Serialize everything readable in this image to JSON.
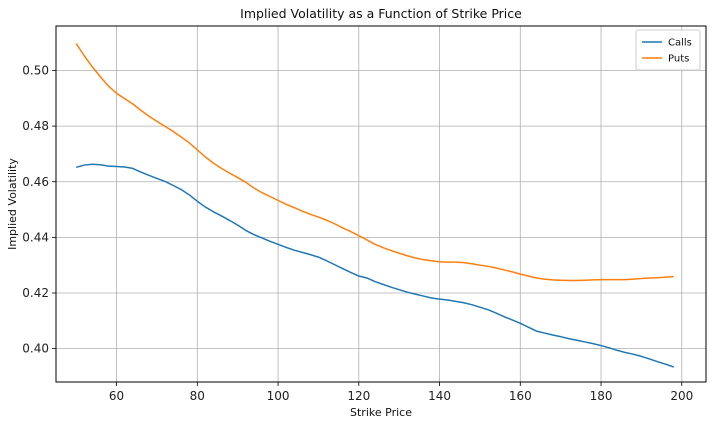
{
  "chart_data": {
    "type": "line",
    "title": "Implied Volatility as a Function of Strike Price",
    "xlabel": "Strike Price",
    "ylabel": "Implied Volatility",
    "xlim": [
      45,
      206
    ],
    "ylim": [
      0.388,
      0.516
    ],
    "xticks": [
      60,
      80,
      100,
      120,
      140,
      160,
      180,
      200
    ],
    "yticks": [
      0.4,
      0.42,
      0.44,
      0.46,
      0.48,
      0.5
    ],
    "grid": true,
    "legend_position": "top-right",
    "x": [
      50,
      52,
      54,
      56,
      58,
      60,
      62,
      64,
      66,
      68,
      70,
      72,
      74,
      76,
      78,
      80,
      82,
      84,
      86,
      88,
      90,
      92,
      94,
      96,
      98,
      100,
      102,
      104,
      106,
      108,
      110,
      112,
      114,
      116,
      118,
      120,
      122,
      124,
      126,
      128,
      130,
      132,
      134,
      136,
      138,
      140,
      142,
      144,
      146,
      148,
      150,
      152,
      154,
      156,
      158,
      160,
      162,
      164,
      166,
      168,
      170,
      172,
      174,
      176,
      178,
      180,
      182,
      184,
      186,
      188,
      190,
      192,
      194,
      196,
      198
    ],
    "series": [
      {
        "name": "Calls",
        "color": "#1f77b4",
        "values": [
          0.4652,
          0.466,
          0.4663,
          0.4661,
          0.4656,
          0.4655,
          0.4653,
          0.4648,
          0.4635,
          0.4623,
          0.4612,
          0.4601,
          0.4587,
          0.4572,
          0.4553,
          0.453,
          0.4509,
          0.4492,
          0.4477,
          0.4461,
          0.4444,
          0.4425,
          0.441,
          0.4398,
          0.4386,
          0.4375,
          0.4364,
          0.4354,
          0.4346,
          0.4338,
          0.4329,
          0.4316,
          0.4302,
          0.4288,
          0.4274,
          0.4261,
          0.4254,
          0.4241,
          0.4231,
          0.4221,
          0.4212,
          0.4203,
          0.4196,
          0.4189,
          0.4182,
          0.4178,
          0.4175,
          0.417,
          0.4165,
          0.4158,
          0.4149,
          0.414,
          0.4128,
          0.4115,
          0.4103,
          0.4091,
          0.4077,
          0.4063,
          0.4056,
          0.4049,
          0.4043,
          0.4036,
          0.403,
          0.4024,
          0.4018,
          0.4011,
          0.4003,
          0.3994,
          0.3986,
          0.398,
          0.3972,
          0.3963,
          0.3953,
          0.3944,
          0.3934
        ]
      },
      {
        "name": "Puts",
        "color": "#ff7f0e",
        "values": [
          0.5097,
          0.5053,
          0.5013,
          0.4977,
          0.4944,
          0.4918,
          0.4899,
          0.488,
          0.4857,
          0.4836,
          0.4817,
          0.4799,
          0.4781,
          0.4761,
          0.474,
          0.4715,
          0.4689,
          0.4667,
          0.4648,
          0.4631,
          0.4615,
          0.4598,
          0.4578,
          0.4561,
          0.4547,
          0.4533,
          0.4519,
          0.4507,
          0.4494,
          0.4483,
          0.4473,
          0.4462,
          0.4449,
          0.4434,
          0.4421,
          0.4406,
          0.4391,
          0.4375,
          0.4363,
          0.4353,
          0.4343,
          0.4334,
          0.4326,
          0.432,
          0.4316,
          0.4312,
          0.4311,
          0.4311,
          0.4309,
          0.4305,
          0.43,
          0.4296,
          0.429,
          0.4283,
          0.4276,
          0.4268,
          0.4261,
          0.4254,
          0.425,
          0.4247,
          0.4246,
          0.4245,
          0.4245,
          0.4246,
          0.4247,
          0.4248,
          0.4248,
          0.4248,
          0.4248,
          0.425,
          0.4252,
          0.4254,
          0.4255,
          0.4257,
          0.4259
        ]
      }
    ]
  }
}
